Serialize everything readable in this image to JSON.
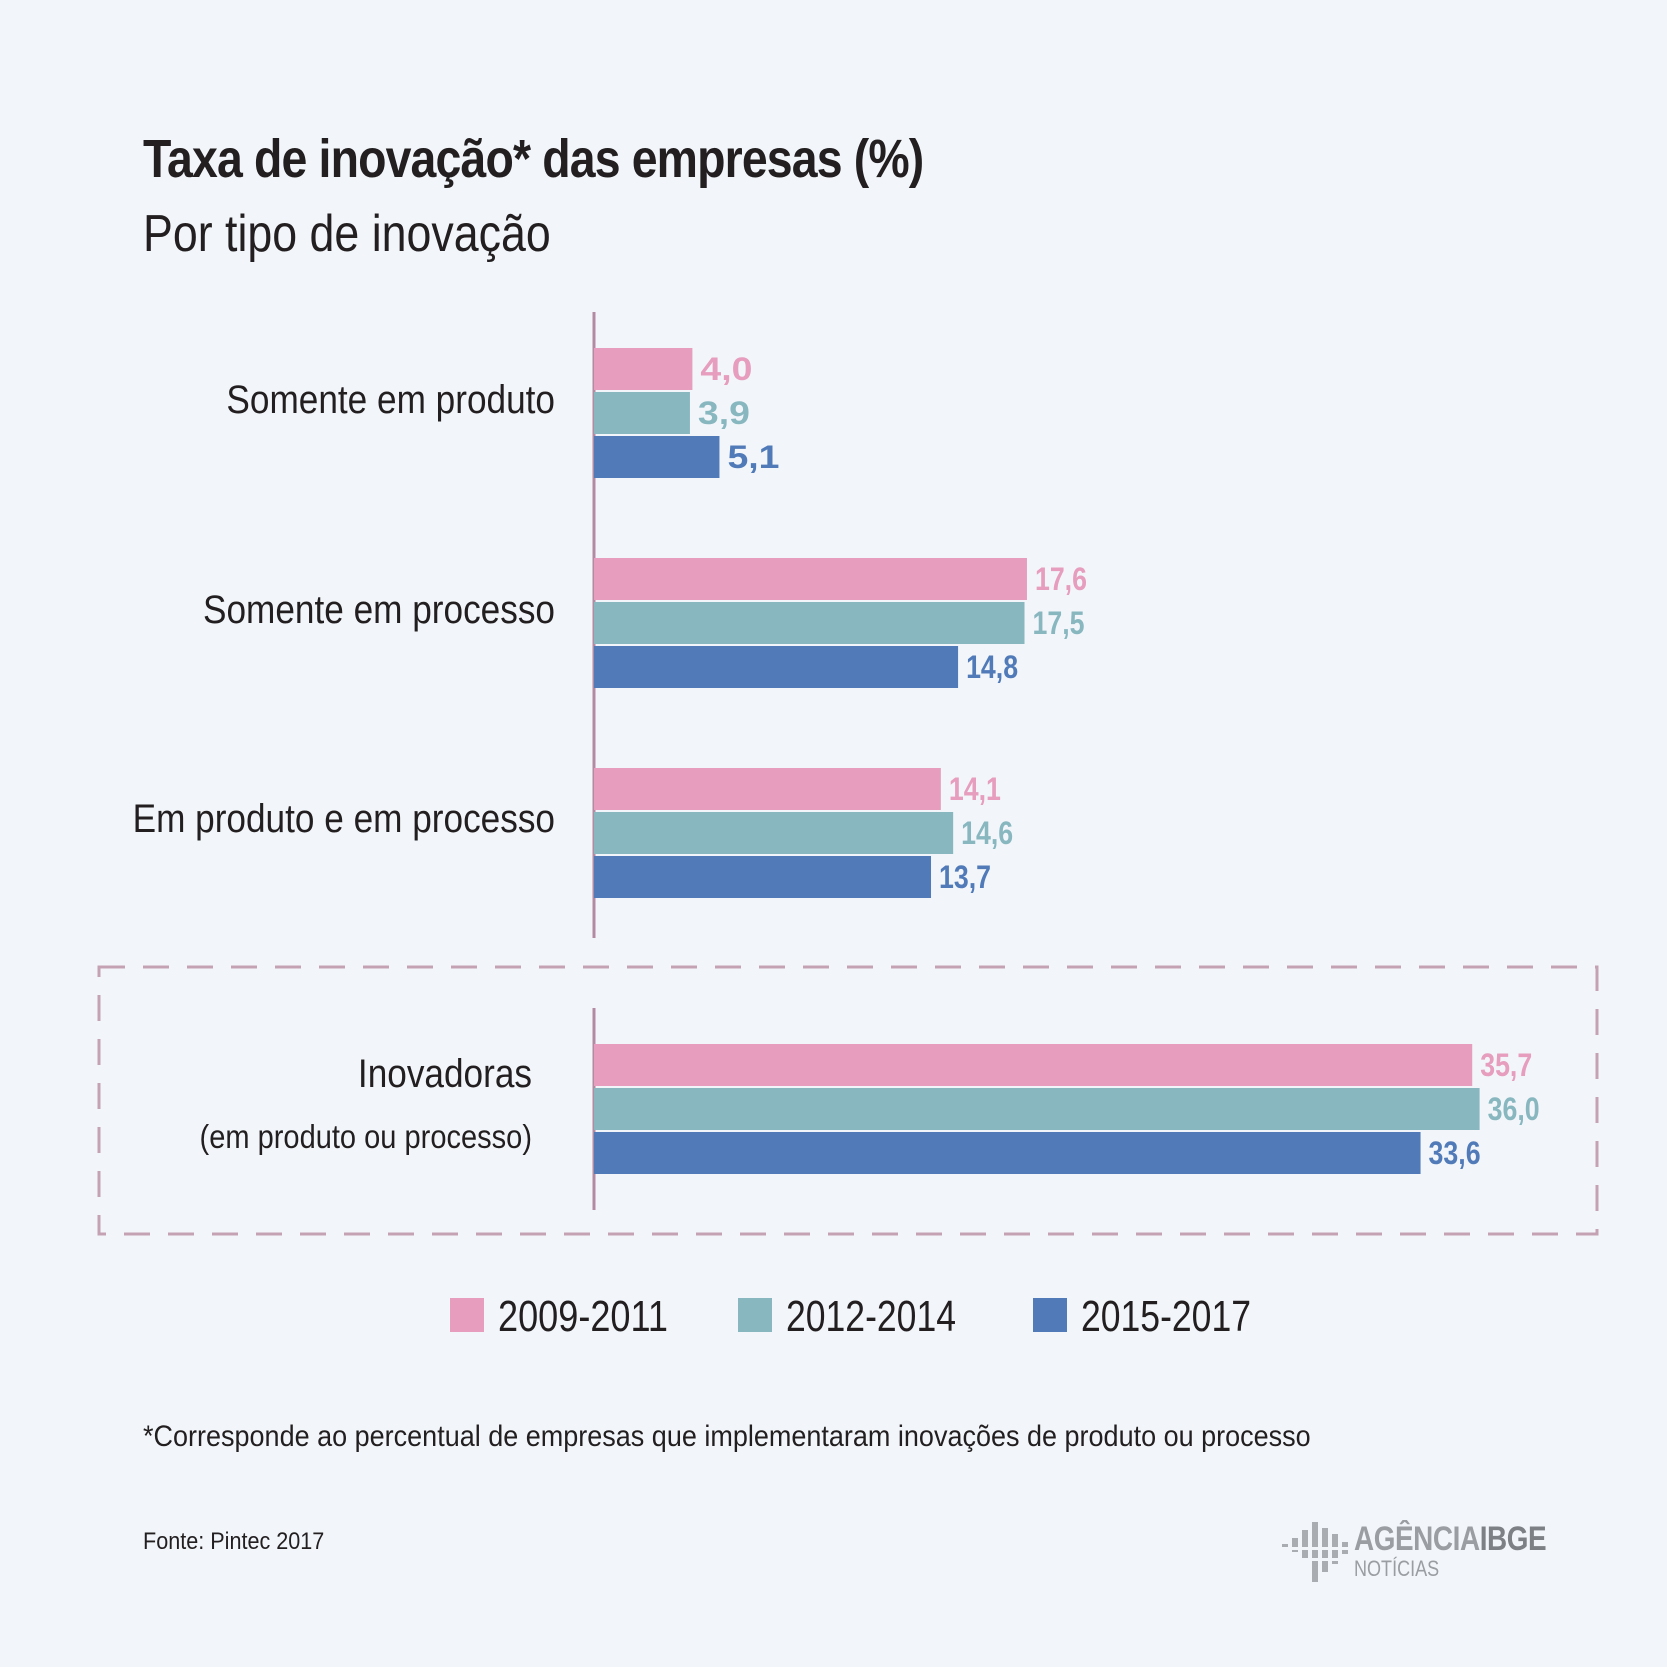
{
  "header": {
    "title": "Taxa de inovação* das empresas (%)",
    "subtitle": "Por tipo de inovação"
  },
  "colors": {
    "2009-2011": "#e69dbe",
    "2012-2014": "#88b7c0",
    "2015-2017": "#517bb8",
    "axis": "#b48aa2",
    "dashed_box": "#c4a2b4"
  },
  "chart_data": {
    "type": "bar",
    "orientation": "horizontal",
    "categories": [
      {
        "label": "Somente em produto",
        "sublabel": ""
      },
      {
        "label": "Somente em processo",
        "sublabel": ""
      },
      {
        "label": "Em produto e em processo",
        "sublabel": ""
      },
      {
        "label": "Inovadoras",
        "sublabel": "(em produto ou processo)"
      }
    ],
    "series": [
      {
        "name": "2009-2011",
        "values": [
          4.0,
          17.6,
          14.1,
          35.7
        ],
        "labels": [
          "4,0",
          "17,6",
          "14,1",
          "35,7"
        ]
      },
      {
        "name": "2012-2014",
        "values": [
          3.9,
          17.5,
          14.6,
          36.0
        ],
        "labels": [
          "3,9",
          "17,5",
          "14,6",
          "36,0"
        ]
      },
      {
        "name": "2015-2017",
        "values": [
          5.1,
          14.8,
          13.7,
          33.6
        ],
        "labels": [
          "5,1",
          "14,8",
          "13,7",
          "33,6"
        ]
      }
    ],
    "highlighted_category": "Inovadoras",
    "legend_position": "bottom",
    "grid": false
  },
  "footnote": "*Corresponde ao percentual de empresas que implementaram inovações de produto ou processo",
  "source": "Fonte:  Pintec 2017",
  "logo": {
    "line1_part1": "AGÊNCIA",
    "line1_part2": "IBGE",
    "line2": "NOTÍCIAS"
  }
}
